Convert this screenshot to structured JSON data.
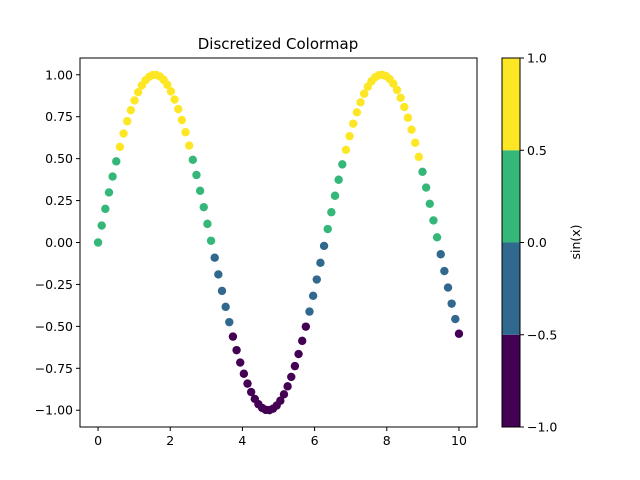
{
  "chart_data": {
    "type": "scatter",
    "title": "Discretized Colormap",
    "xlabel": "",
    "ylabel": "",
    "x_sampling": {
      "start": 0,
      "stop": 10,
      "count": 100
    },
    "y_function": "sin(x)",
    "xlim": [
      -0.5,
      10.5
    ],
    "ylim": [
      -1.1,
      1.1
    ],
    "xticks": [
      0,
      2,
      4,
      6,
      8,
      10
    ],
    "xtick_labels": [
      "0",
      "2",
      "4",
      "6",
      "8",
      "10"
    ],
    "yticks": [
      -1.0,
      -0.75,
      -0.5,
      -0.25,
      0.0,
      0.25,
      0.5,
      0.75,
      1.0
    ],
    "ytick_labels": [
      "−1.00",
      "−0.75",
      "−0.50",
      "−0.25",
      "0.00",
      "0.25",
      "0.50",
      "0.75",
      "1.00"
    ],
    "grid": false,
    "colorbar": {
      "label": "sin(x)",
      "boundaries": [
        -1.0,
        -0.5,
        0.0,
        0.5,
        1.0
      ],
      "tick_labels": [
        "−1.0",
        "−0.5",
        "0.0",
        "0.5",
        "1.0"
      ],
      "colors": [
        "#440154",
        "#31688e",
        "#35b779",
        "#fde725"
      ]
    }
  }
}
